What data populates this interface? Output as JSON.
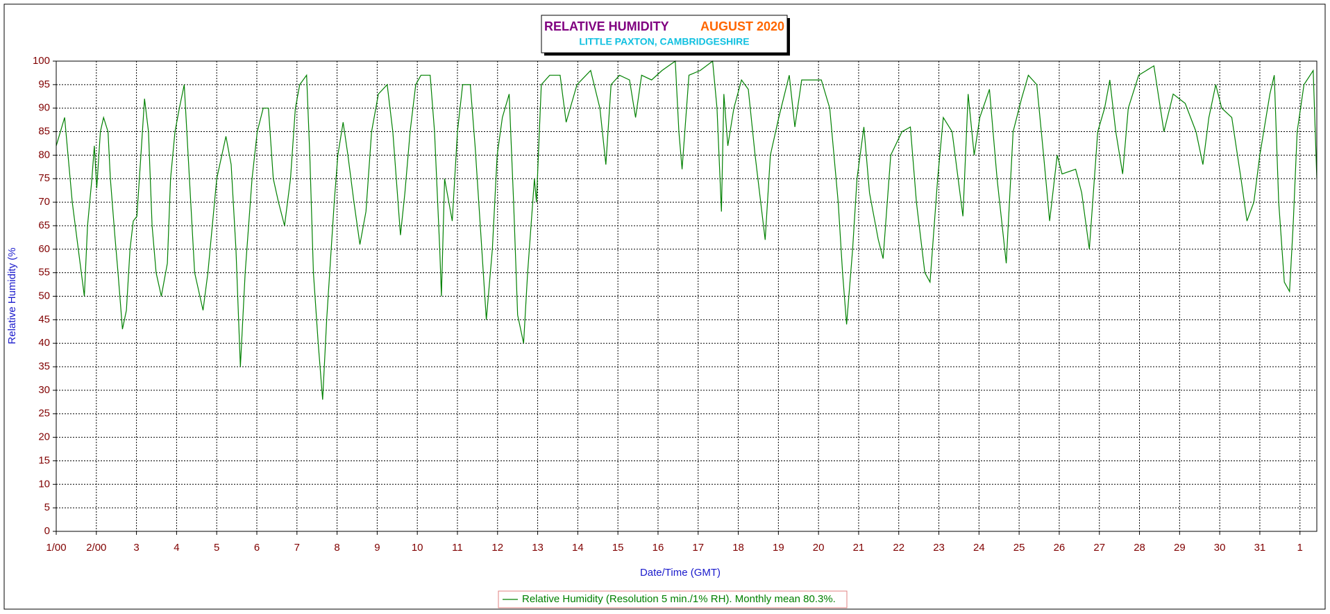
{
  "chart_data": {
    "type": "line",
    "title": "RELATIVE HUMIDITY",
    "title_period": "AUGUST 2020",
    "subtitle": "LITTLE PAXTON, CAMBRIDGESHIRE",
    "x_label": "Date/Time (GMT)",
    "y_label": "Relative Humidity (%",
    "grid": true,
    "xlim": [
      1,
      32.42
    ],
    "ylim": [
      0,
      100
    ],
    "xticks": [
      {
        "value": 1,
        "label": "1/00"
      },
      {
        "value": 2,
        "label": "2/00"
      },
      3,
      4,
      5,
      6,
      7,
      8,
      9,
      10,
      11,
      12,
      13,
      14,
      15,
      16,
      17,
      18,
      19,
      20,
      21,
      22,
      23,
      24,
      25,
      26,
      27,
      28,
      29,
      30,
      31,
      {
        "value": 32,
        "label": "1"
      }
    ],
    "yticks": [
      0,
      5,
      10,
      15,
      20,
      25,
      30,
      35,
      40,
      45,
      50,
      55,
      60,
      65,
      70,
      75,
      80,
      85,
      90,
      95,
      100
    ],
    "x": [
      1.0,
      1.21,
      1.4,
      1.55,
      1.7,
      1.78,
      1.89,
      1.95,
      2.01,
      2.1,
      2.18,
      2.29,
      2.35,
      2.46,
      2.54,
      2.65,
      2.75,
      2.84,
      2.92,
      3.01,
      3.11,
      3.2,
      3.3,
      3.39,
      3.49,
      3.62,
      3.77,
      3.85,
      3.96,
      4.07,
      4.19,
      4.32,
      4.45,
      4.66,
      4.78,
      5.0,
      5.23,
      5.36,
      5.48,
      5.59,
      5.71,
      5.88,
      6.01,
      6.16,
      6.29,
      6.41,
      6.54,
      6.69,
      6.84,
      6.96,
      7.07,
      7.24,
      7.32,
      7.41,
      7.53,
      7.64,
      7.74,
      7.83,
      7.93,
      8.02,
      8.15,
      8.27,
      8.42,
      8.57,
      8.72,
      8.86,
      9.03,
      9.25,
      9.39,
      9.52,
      9.58,
      9.69,
      9.82,
      9.96,
      10.09,
      10.32,
      10.43,
      10.56,
      10.6,
      10.68,
      10.87,
      11.0,
      11.13,
      11.32,
      11.44,
      11.57,
      11.72,
      11.87,
      11.99,
      12.12,
      12.29,
      12.4,
      12.5,
      12.65,
      12.75,
      12.92,
      12.97,
      13.09,
      13.3,
      13.56,
      13.71,
      13.98,
      14.32,
      14.55,
      14.7,
      14.83,
      15.04,
      15.29,
      15.44,
      15.59,
      15.84,
      16.1,
      16.43,
      16.52,
      16.6,
      16.77,
      17.05,
      17.36,
      17.47,
      17.58,
      17.64,
      17.74,
      17.89,
      18.08,
      18.25,
      18.42,
      18.67,
      18.8,
      19.01,
      19.27,
      19.41,
      19.58,
      20.07,
      20.28,
      20.49,
      20.6,
      20.7,
      20.85,
      20.96,
      21.13,
      21.27,
      21.49,
      21.61,
      21.8,
      22.08,
      22.29,
      22.44,
      22.65,
      22.78,
      22.97,
      23.11,
      23.33,
      23.6,
      23.73,
      23.88,
      24.02,
      24.26,
      24.45,
      24.68,
      24.85,
      25.06,
      25.23,
      25.44,
      25.61,
      25.76,
      25.95,
      26.07,
      26.41,
      26.56,
      26.75,
      26.96,
      27.13,
      27.26,
      27.41,
      27.58,
      27.72,
      27.98,
      28.36,
      28.61,
      28.84,
      29.14,
      29.41,
      29.58,
      29.73,
      29.9,
      30.05,
      30.3,
      30.53,
      30.68,
      30.85,
      31.0,
      31.25,
      31.36,
      31.47,
      31.61,
      31.74,
      31.83,
      31.93,
      32.1,
      32.33,
      32.42
    ],
    "series": [
      {
        "name": "Relative Humidity (Resolution 5 min./1% RH). Monthly mean 80.3%.",
        "color": "#008000",
        "values": [
          82,
          88,
          70,
          60,
          50,
          65,
          75,
          82,
          73,
          85,
          88,
          85,
          75,
          63,
          55,
          43,
          47,
          60,
          66,
          67,
          80,
          92,
          85,
          65,
          55,
          50,
          57,
          75,
          85,
          90,
          95,
          75,
          55,
          47,
          55,
          75,
          84,
          78,
          60,
          35,
          55,
          75,
          85,
          90,
          90,
          75,
          70,
          65,
          75,
          90,
          95,
          97,
          80,
          55,
          40,
          28,
          45,
          57,
          70,
          80,
          87,
          80,
          70,
          61,
          68,
          85,
          93,
          95,
          85,
          70,
          63,
          72,
          85,
          95,
          97,
          97,
          85,
          60,
          50,
          75,
          66,
          85,
          95,
          95,
          82,
          65,
          45,
          60,
          80,
          88,
          93,
          70,
          46,
          40,
          55,
          75,
          70,
          95,
          97,
          97,
          87,
          95,
          98,
          90,
          78,
          95,
          97,
          96,
          88,
          97,
          96,
          98,
          100,
          85,
          77,
          97,
          98,
          100,
          90,
          68,
          93,
          82,
          90,
          96,
          94,
          80,
          62,
          80,
          88,
          97,
          86,
          96,
          96,
          90,
          70,
          55,
          44,
          60,
          75,
          86,
          72,
          62,
          58,
          80,
          85,
          86,
          70,
          55,
          53,
          75,
          88,
          85,
          67,
          93,
          80,
          88,
          94,
          75,
          57,
          85,
          92,
          97,
          95,
          80,
          66,
          80,
          76,
          77,
          72,
          60,
          85,
          90,
          96,
          85,
          76,
          90,
          97,
          99,
          85,
          93,
          91,
          85,
          78,
          88,
          95,
          90,
          88,
          75,
          66,
          70,
          80,
          93,
          97,
          70,
          53,
          51,
          65,
          85,
          95,
          98,
          75
        ]
      }
    ]
  }
}
